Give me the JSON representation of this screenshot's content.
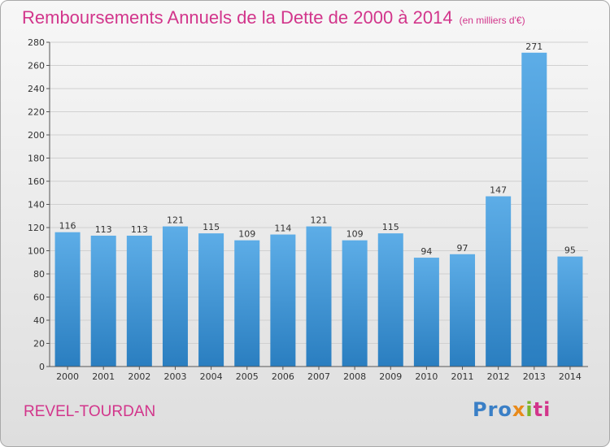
{
  "title": "Remboursements Annuels de la Dette de 2000 à 2014",
  "subtitle": "(en milliers d'€)",
  "city": "REVEL-TOURDAN",
  "logo": {
    "p": "Pro",
    "x": "x",
    "i": "i",
    "t": "ti"
  },
  "colors": {
    "bar_top": "#5dade7",
    "bar_bottom": "#2a7ec0",
    "title": "#d2358b"
  },
  "chart_data": {
    "type": "bar",
    "categories": [
      "2000",
      "2001",
      "2002",
      "2003",
      "2004",
      "2005",
      "2006",
      "2007",
      "2008",
      "2009",
      "2010",
      "2011",
      "2012",
      "2013",
      "2014"
    ],
    "values": [
      116,
      113,
      113,
      121,
      115,
      109,
      114,
      121,
      109,
      115,
      94,
      97,
      147,
      271,
      95
    ],
    "ylim": [
      0,
      280
    ],
    "yticks": [
      0,
      20,
      40,
      60,
      80,
      100,
      120,
      140,
      160,
      180,
      200,
      220,
      240,
      260,
      280
    ],
    "grid": true
  }
}
